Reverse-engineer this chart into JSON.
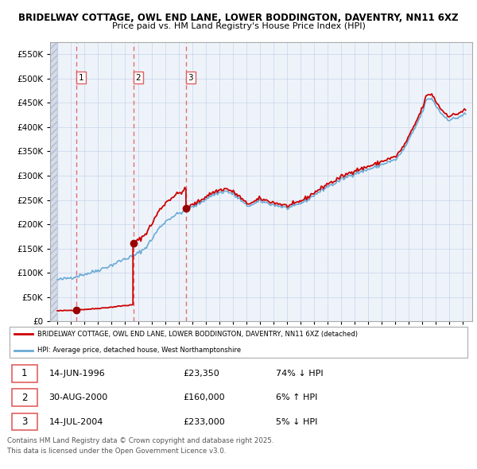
{
  "title": "BRIDELWAY COTTAGE, OWL END LANE, LOWER BODDINGTON, DAVENTRY, NN11 6XZ",
  "subtitle": "Price paid vs. HM Land Registry's House Price Index (HPI)",
  "hpi_label": "HPI: Average price, detached house, West Northamptonshire",
  "property_label": "BRIDELWAY COTTAGE, OWL END LANE, LOWER BODDINGTON, DAVENTRY, NN11 6XZ (detached)",
  "footer_line1": "Contains HM Land Registry data © Crown copyright and database right 2025.",
  "footer_line2": "This data is licensed under the Open Government Licence v3.0.",
  "hpi_color": "#6aaad4",
  "property_color": "#cc0000",
  "sale_color": "#990000",
  "dashed_color": "#e06060",
  "background_hatch": "#dde4ef",
  "ylim": [
    0,
    575000
  ],
  "yticks": [
    0,
    50000,
    100000,
    150000,
    200000,
    250000,
    300000,
    350000,
    400000,
    450000,
    500000,
    550000
  ],
  "xlim_start": 1994.5,
  "xlim_end": 2025.7,
  "sales": [
    {
      "year": 1996.45,
      "price": 23350,
      "label": "1"
    },
    {
      "year": 2000.66,
      "price": 160000,
      "label": "2"
    },
    {
      "year": 2004.54,
      "price": 233000,
      "label": "3"
    }
  ],
  "table_rows": [
    {
      "num": "1",
      "date": "14-JUN-1996",
      "price": "£23,350",
      "hpi": "74% ↓ HPI"
    },
    {
      "num": "2",
      "date": "30-AUG-2000",
      "price": "£160,000",
      "hpi": "6% ↑ HPI"
    },
    {
      "num": "3",
      "date": "14-JUL-2004",
      "price": "£233,000",
      "hpi": "5% ↓ HPI"
    }
  ]
}
